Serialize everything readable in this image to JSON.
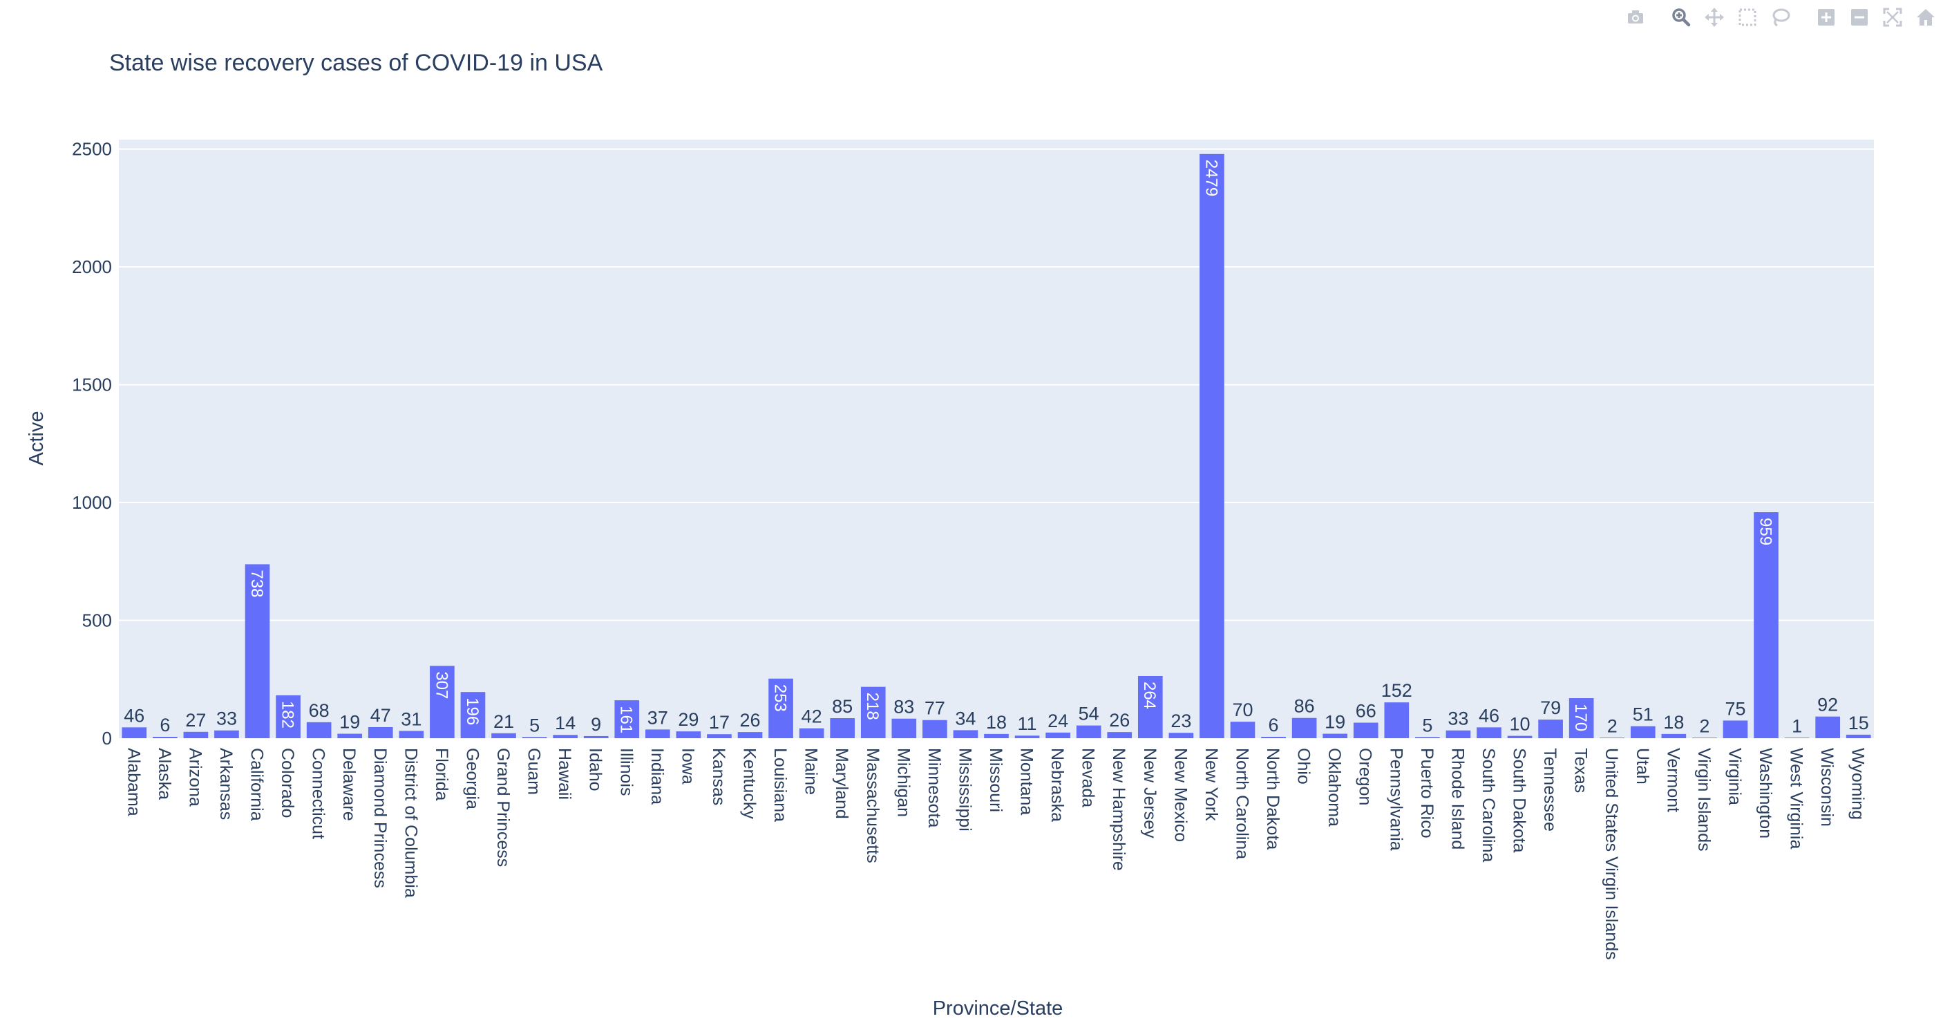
{
  "modebar": {
    "buttons": [
      {
        "group": 1,
        "icon": "camera-icon"
      },
      {
        "group": 2,
        "icon": "zoom-icon"
      },
      {
        "group": 2,
        "icon": "pan-icon"
      },
      {
        "group": 2,
        "icon": "box-select-icon"
      },
      {
        "group": 2,
        "icon": "lasso-select-icon"
      },
      {
        "group": 3,
        "icon": "zoom-in-icon"
      },
      {
        "group": 3,
        "icon": "zoom-out-icon"
      },
      {
        "group": 3,
        "icon": "autoscale-icon"
      },
      {
        "group": 3,
        "icon": "reset-axes-icon"
      }
    ]
  },
  "colors": {
    "bar": "#636efa",
    "plot_bg": "#e5ecf6",
    "grid": "#ffffff",
    "text": "#2a3f5f",
    "modebar_icon": "#c4c9d1",
    "modebar_active": "#7a8394"
  },
  "chart_data": {
    "type": "bar",
    "title": "State wise recovery cases of COVID-19 in USA",
    "xlabel": "Province/State",
    "ylabel": "Active",
    "ylim": [
      0,
      2540
    ],
    "yticks": [
      0,
      500,
      1000,
      1500,
      2000,
      2500
    ],
    "grid": true,
    "text_position": "auto",
    "categories": [
      "Alabama",
      "Alaska",
      "Arizona",
      "Arkansas",
      "California",
      "Colorado",
      "Connecticut",
      "Delaware",
      "Diamond Princess",
      "District of Columbia",
      "Florida",
      "Georgia",
      "Grand Princess",
      "Guam",
      "Hawaii",
      "Idaho",
      "Illinois",
      "Indiana",
      "Iowa",
      "Kansas",
      "Kentucky",
      "Louisiana",
      "Maine",
      "Maryland",
      "Massachusetts",
      "Michigan",
      "Minnesota",
      "Mississippi",
      "Missouri",
      "Montana",
      "Nebraska",
      "Nevada",
      "New Hampshire",
      "New Jersey",
      "New Mexico",
      "New York",
      "North Carolina",
      "North Dakota",
      "Ohio",
      "Oklahoma",
      "Oregon",
      "Pennsylvania",
      "Puerto Rico",
      "Rhode Island",
      "South Carolina",
      "South Dakota",
      "Tennessee",
      "Texas",
      "United States Virgin Islands",
      "Utah",
      "Vermont",
      "Virgin Islands",
      "Virginia",
      "Washington",
      "West Virginia",
      "Wisconsin",
      "Wyoming"
    ],
    "values": [
      46,
      6,
      27,
      33,
      738,
      182,
      68,
      19,
      47,
      31,
      307,
      196,
      21,
      5,
      14,
      9,
      161,
      37,
      29,
      17,
      26,
      253,
      42,
      85,
      218,
      83,
      77,
      34,
      18,
      11,
      24,
      54,
      26,
      264,
      23,
      2479,
      70,
      6,
      86,
      19,
      66,
      152,
      5,
      33,
      46,
      10,
      79,
      170,
      2,
      51,
      18,
      2,
      75,
      959,
      1,
      92,
      15
    ]
  }
}
